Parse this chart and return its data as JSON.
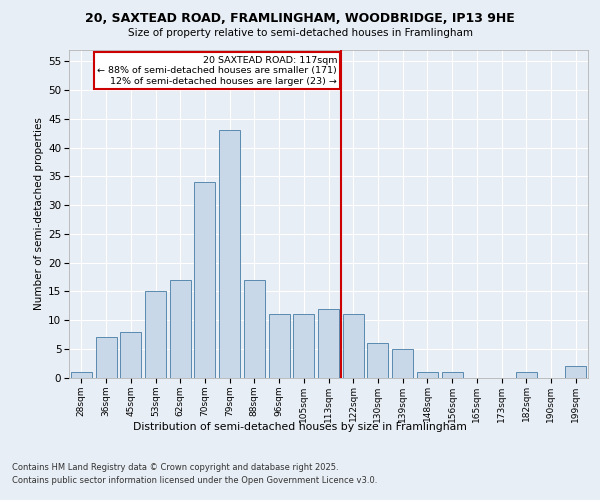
{
  "title1": "20, SAXTEAD ROAD, FRAMLINGHAM, WOODBRIDGE, IP13 9HE",
  "title2": "Size of property relative to semi-detached houses in Framlingham",
  "xlabel": "Distribution of semi-detached houses by size in Framlingham",
  "ylabel": "Number of semi-detached properties",
  "categories": [
    "28sqm",
    "36sqm",
    "45sqm",
    "53sqm",
    "62sqm",
    "70sqm",
    "79sqm",
    "88sqm",
    "96sqm",
    "105sqm",
    "113sqm",
    "122sqm",
    "130sqm",
    "139sqm",
    "148sqm",
    "156sqm",
    "165sqm",
    "173sqm",
    "182sqm",
    "190sqm",
    "199sqm"
  ],
  "values": [
    1,
    7,
    8,
    15,
    17,
    34,
    43,
    17,
    11,
    11,
    12,
    11,
    6,
    5,
    1,
    1,
    0,
    0,
    1,
    0,
    2
  ],
  "bar_color": "#c8d8e8",
  "bar_edge_color": "#5a8ab0",
  "vline_color": "#cc0000",
  "annotation_title": "20 SAXTEAD ROAD: 117sqm",
  "annotation_line1": "← 88% of semi-detached houses are smaller (171)",
  "annotation_line2": "12% of semi-detached houses are larger (23) →",
  "annotation_box_color": "#cc0000",
  "ylim": [
    0,
    57
  ],
  "yticks": [
    0,
    5,
    10,
    15,
    20,
    25,
    30,
    35,
    40,
    45,
    50,
    55
  ],
  "background_color": "#e8eef5",
  "grid_color": "#ffffff",
  "footer1": "Contains HM Land Registry data © Crown copyright and database right 2025.",
  "footer2": "Contains public sector information licensed under the Open Government Licence v3.0."
}
